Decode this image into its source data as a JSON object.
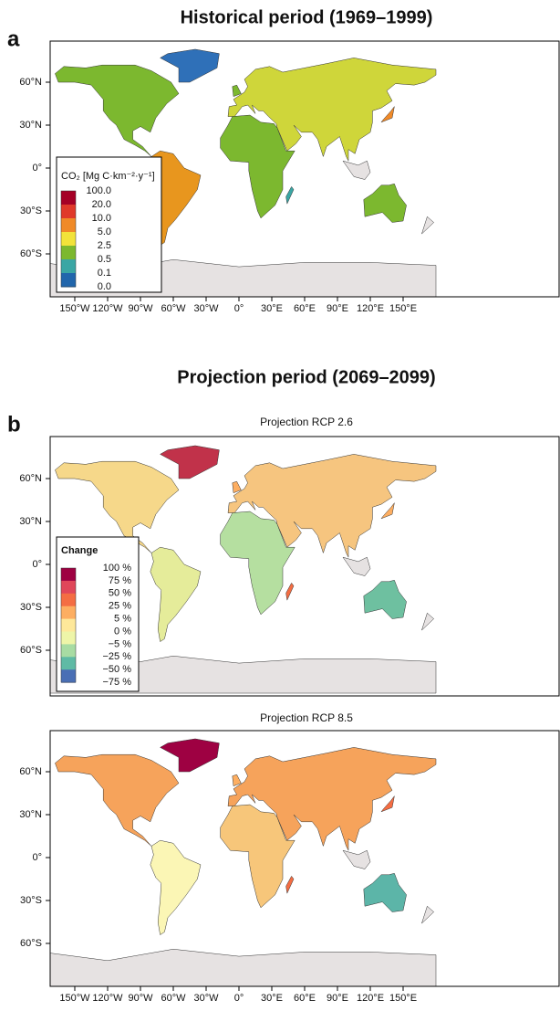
{
  "panel_a": {
    "label": "a",
    "title": "Historical period (1969–1999)",
    "legend": {
      "title": "CO₂ [Mg C·km⁻²·y⁻¹]",
      "labels": [
        "100.0",
        "20.0",
        "10.0",
        "5.0",
        "2.5",
        "0.5",
        "0.1",
        "0.0"
      ],
      "colors": [
        "#a50026",
        "#e0392a",
        "#f08a28",
        "#f2e33a",
        "#7cb82f",
        "#3aa6a4",
        "#2166ac"
      ]
    }
  },
  "panel_b": {
    "label": "b",
    "title": "Projection period (2069–2099)",
    "maps": [
      {
        "title": "Projection RCP 2.6"
      },
      {
        "title": "Projection RCP 8.5"
      }
    ],
    "legend": {
      "title": "Change",
      "labels": [
        "100 %",
        "75 %",
        "50 %",
        "25 %",
        "5 %",
        "0 %",
        "−5 %",
        "−25 %",
        "−50 %",
        "−75 %"
      ],
      "colors": [
        "#9e0142",
        "#e0475a",
        "#f46d43",
        "#fdae61",
        "#fee89a",
        "#eef5a8",
        "#a8dca3",
        "#5fbaa5",
        "#4a6fb5"
      ]
    }
  },
  "lat_labels": [
    "60°N",
    "30°N",
    "0°",
    "30°S",
    "60°S"
  ],
  "lon_labels": [
    "150°W",
    "120°W",
    "90°W",
    "60°W",
    "30°W",
    "0°",
    "30°E",
    "60°E",
    "90°E",
    "120°E",
    "150°E"
  ]
}
